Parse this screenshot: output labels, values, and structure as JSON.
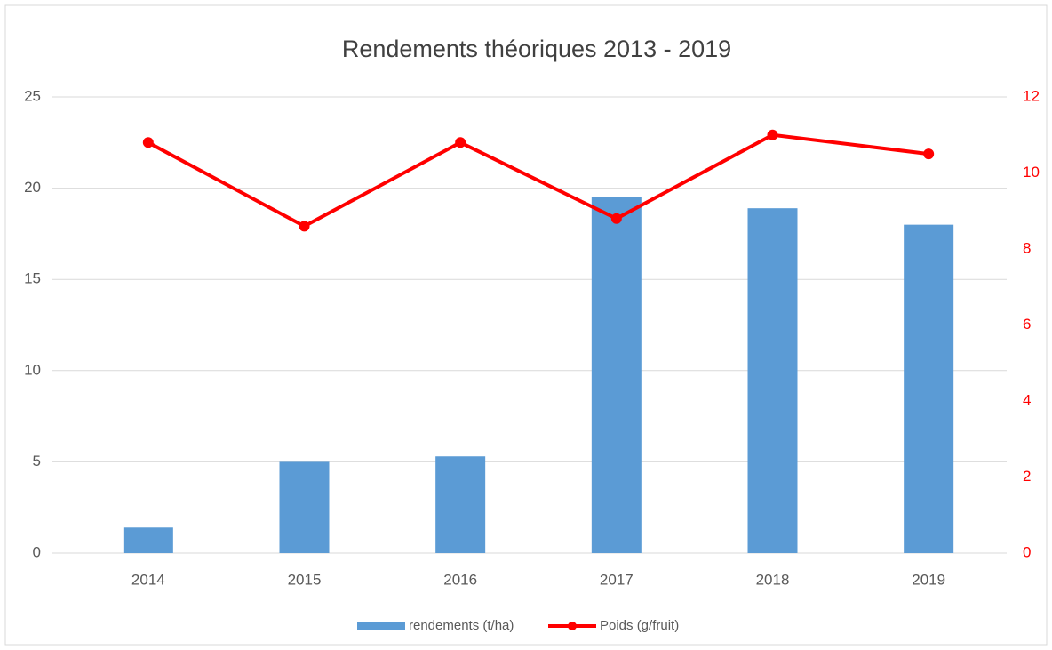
{
  "chart_data": {
    "type": "combo",
    "title": "Rendements théoriques 2013 - 2019",
    "categories": [
      "2014",
      "2015",
      "2016",
      "2017",
      "2018",
      "2019"
    ],
    "series": [
      {
        "name": "rendements (t/ha)",
        "type": "bar",
        "color": "#5b9bd5",
        "values": [
          1.4,
          5.0,
          5.3,
          19.5,
          18.9,
          18.0
        ]
      },
      {
        "name": "Poids (g/fruit)",
        "type": "line",
        "axis": "y2",
        "color": "#ff0000",
        "values": [
          10.8,
          8.6,
          10.8,
          8.8,
          11.0,
          10.5
        ]
      }
    ],
    "ylim": [
      0,
      25
    ],
    "yticks": [
      0,
      5,
      10,
      15,
      20,
      25
    ],
    "y2lim": [
      0,
      12
    ],
    "y2ticks": [
      0,
      2,
      4,
      6,
      8,
      10,
      12
    ],
    "grid": true,
    "legend": "bottom"
  }
}
